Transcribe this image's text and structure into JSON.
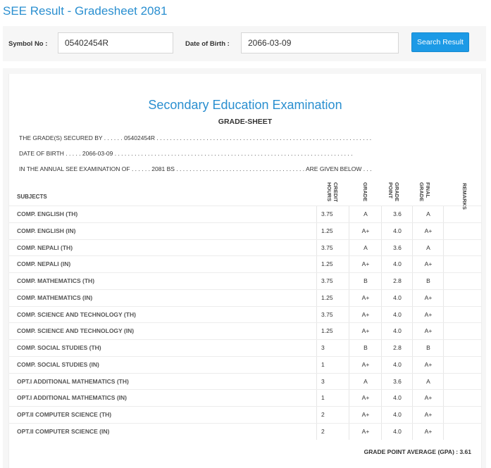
{
  "page_title": "SEE Result - Gradesheet 2081",
  "search": {
    "symbol_label": "Symbol No :",
    "symbol_value": "05402454R",
    "dob_label": "Date of Birth :",
    "dob_value": "2066-03-09",
    "button_label": "Search Result"
  },
  "sheet": {
    "exam_title": "Secondary Education Examination",
    "gradesheet_title": "GRADE-SHEET",
    "line1": "THE GRADE(S) SECURED BY . . . . . . 05402454R . . . . . . . . . . . . . . . . . . . . . . . . . . . . . . . . . . . . . . . . . . . . . . . . . . . . . . . . . . . . . . . . .",
    "line2": "DATE OF BIRTH . . . . . 2066-03-09 . . . . . . . . . . . . . . . . . . . . . . . . . . . . . . . . . . . . . . . . . . . . . . . . . . . . . . . . . . . . . . . . . . . . . . . .",
    "line3": "IN THE ANNUAL SEE EXAMINATION OF . . . . . . 2081 BS . . . . . . . . . . . . . . . . . . . . . . . . . . . . . . . . . . . . . . . ARE GIVEN BELOW . . .",
    "headers": {
      "subjects": "SUBJECTS",
      "credit_line1": "CREDIT",
      "credit_line2": "HOURS",
      "grade": "GRADE",
      "gp_line1": "GRADE",
      "gp_line2": "POINT",
      "final_line1": "FINAL",
      "final_line2": "GRADE",
      "remarks": "REMARKS"
    },
    "rows": [
      {
        "subject": "COMP. ENGLISH (TH)",
        "credit": "3.75",
        "grade": "A",
        "gp": "3.6",
        "final": "A"
      },
      {
        "subject": "COMP. ENGLISH (IN)",
        "credit": "1.25",
        "grade": "A+",
        "gp": "4.0",
        "final": "A+"
      },
      {
        "subject": "COMP. NEPALI (TH)",
        "credit": "3.75",
        "grade": "A",
        "gp": "3.6",
        "final": "A"
      },
      {
        "subject": "COMP. NEPALI (IN)",
        "credit": "1.25",
        "grade": "A+",
        "gp": "4.0",
        "final": "A+"
      },
      {
        "subject": "COMP. MATHEMATICS (TH)",
        "credit": "3.75",
        "grade": "B",
        "gp": "2.8",
        "final": "B"
      },
      {
        "subject": "COMP. MATHEMATICS (IN)",
        "credit": "1.25",
        "grade": "A+",
        "gp": "4.0",
        "final": "A+"
      },
      {
        "subject": "COMP. SCIENCE AND TECHNOLOGY (TH)",
        "credit": "3.75",
        "grade": "A+",
        "gp": "4.0",
        "final": "A+"
      },
      {
        "subject": "COMP. SCIENCE AND TECHNOLOGY (IN)",
        "credit": "1.25",
        "grade": "A+",
        "gp": "4.0",
        "final": "A+"
      },
      {
        "subject": "COMP. SOCIAL STUDIES (TH)",
        "credit": "3",
        "grade": "B",
        "gp": "2.8",
        "final": "B"
      },
      {
        "subject": "COMP. SOCIAL STUDIES (IN)",
        "credit": "1",
        "grade": "A+",
        "gp": "4.0",
        "final": "A+"
      },
      {
        "subject": "OPT.I ADDITIONAL MATHEMATICS (TH)",
        "credit": "3",
        "grade": "A",
        "gp": "3.6",
        "final": "A"
      },
      {
        "subject": "OPT.I ADDITIONAL MATHEMATICS (IN)",
        "credit": "1",
        "grade": "A+",
        "gp": "4.0",
        "final": "A+"
      },
      {
        "subject": "OPT.II COMPUTER SCIENCE (TH)",
        "credit": "2",
        "grade": "A+",
        "gp": "4.0",
        "final": "A+"
      },
      {
        "subject": "OPT.II COMPUTER SCIENCE (IN)",
        "credit": "2",
        "grade": "A+",
        "gp": "4.0",
        "final": "A+"
      }
    ],
    "gpa_label": "GRADE POINT AVERAGE (GPA) : 3.61"
  },
  "colors": {
    "accent": "#2a8fd0",
    "button": "#1c9ae6",
    "panel": "#f6f6f6"
  }
}
